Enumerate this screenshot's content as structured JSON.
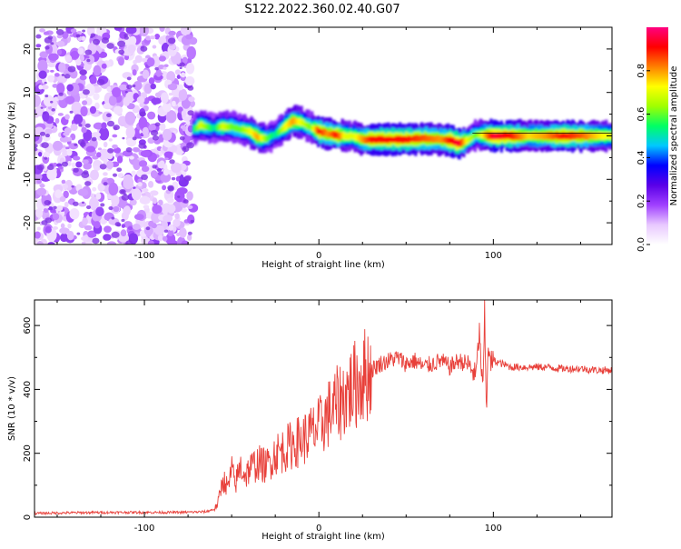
{
  "title": "S122.2022.360.02.40.G07",
  "chart_data": [
    {
      "type": "heatmap",
      "xlabel": "Height of straight line (km)",
      "ylabel": "Frequency (Hz)",
      "xlim": [
        -163,
        168
      ],
      "ylim": [
        -25,
        25
      ],
      "x_ticks": [
        -100,
        0,
        100
      ],
      "y_ticks": [
        -20,
        -10,
        0,
        10,
        20
      ],
      "colorbar": {
        "label": "Normalized spectral amplitude",
        "range": [
          0,
          1
        ],
        "ticks": [
          "0.0",
          "0.2",
          "0.4",
          "0.6",
          "0.8"
        ],
        "colors": [
          "#ffffff",
          "#e8c8ff",
          "#a040ff",
          "#5a00e8",
          "#0000ff",
          "#00c8ff",
          "#00ff64",
          "#a0ff00",
          "#ffff00",
          "#ff8000",
          "#ff0000",
          "#ff0080"
        ]
      },
      "noise_region": {
        "x_range": [
          -163,
          -72
        ],
        "amplitude": 0.15
      },
      "ridge": {
        "x": [
          -72,
          -68,
          -64,
          -60,
          -55,
          -50,
          -45,
          -40,
          -35,
          -30,
          -25,
          -20,
          -15,
          -10,
          -5,
          0,
          5,
          10,
          15,
          20,
          25,
          30,
          40,
          50,
          60,
          70,
          75,
          80,
          85,
          90,
          100,
          110,
          120,
          130,
          140,
          150,
          160,
          168
        ],
        "freq": [
          1.5,
          2.5,
          2.0,
          1.8,
          2.2,
          2.0,
          1.5,
          1.0,
          -0.3,
          -0.6,
          0.5,
          2.0,
          3.5,
          3.0,
          2.0,
          1.0,
          0.5,
          0.2,
          0.0,
          -0.1,
          -0.8,
          -0.8,
          -0.8,
          -0.8,
          -0.6,
          -0.8,
          -1.0,
          -1.8,
          -1.0,
          0.3,
          0.0,
          0.0,
          0.0,
          0.0,
          0.0,
          0.0,
          0.0,
          0.0
        ],
        "amplitude": [
          0.5,
          0.7,
          0.6,
          0.5,
          0.7,
          0.6,
          0.6,
          0.7,
          0.8,
          0.6,
          0.5,
          0.7,
          0.8,
          0.7,
          0.6,
          0.9,
          0.8,
          0.9,
          0.7,
          0.7,
          0.8,
          0.9,
          0.9,
          0.9,
          0.85,
          0.8,
          0.9,
          0.95,
          0.7,
          0.6,
          0.95,
          0.9,
          0.75,
          0.8,
          0.9,
          0.85,
          0.75,
          0.7
        ]
      }
    },
    {
      "type": "line",
      "xlabel": "Height of straight line (km)",
      "ylabel": "SNR (10 * v/v)",
      "xlim": [
        -163,
        168
      ],
      "ylim": [
        0,
        680
      ],
      "x_ticks": [
        -100,
        0,
        100
      ],
      "y_ticks": [
        0,
        200,
        400,
        600
      ],
      "color": "#e8403a",
      "x": [
        -163,
        -140,
        -120,
        -100,
        -80,
        -65,
        -60,
        -58,
        -55,
        -52,
        -50,
        -48,
        -45,
        -42,
        -40,
        -35,
        -30,
        -25,
        -20,
        -15,
        -10,
        -5,
        0,
        5,
        10,
        15,
        20,
        25,
        30,
        35,
        40,
        45,
        50,
        55,
        60,
        65,
        70,
        75,
        80,
        85,
        88,
        90,
        92,
        94,
        95,
        96,
        97,
        98,
        100,
        105,
        110,
        120,
        130,
        140,
        150,
        160,
        168
      ],
      "y": [
        12,
        14,
        15,
        15,
        15,
        17,
        25,
        40,
        120,
        90,
        150,
        100,
        160,
        130,
        150,
        170,
        160,
        200,
        210,
        230,
        240,
        260,
        280,
        320,
        350,
        380,
        410,
        440,
        460,
        480,
        490,
        500,
        480,
        490,
        470,
        480,
        490,
        470,
        490,
        480,
        460,
        440,
        580,
        380,
        640,
        320,
        560,
        480,
        490,
        480,
        470,
        470,
        470,
        465,
        465,
        460,
        460
      ]
    }
  ]
}
